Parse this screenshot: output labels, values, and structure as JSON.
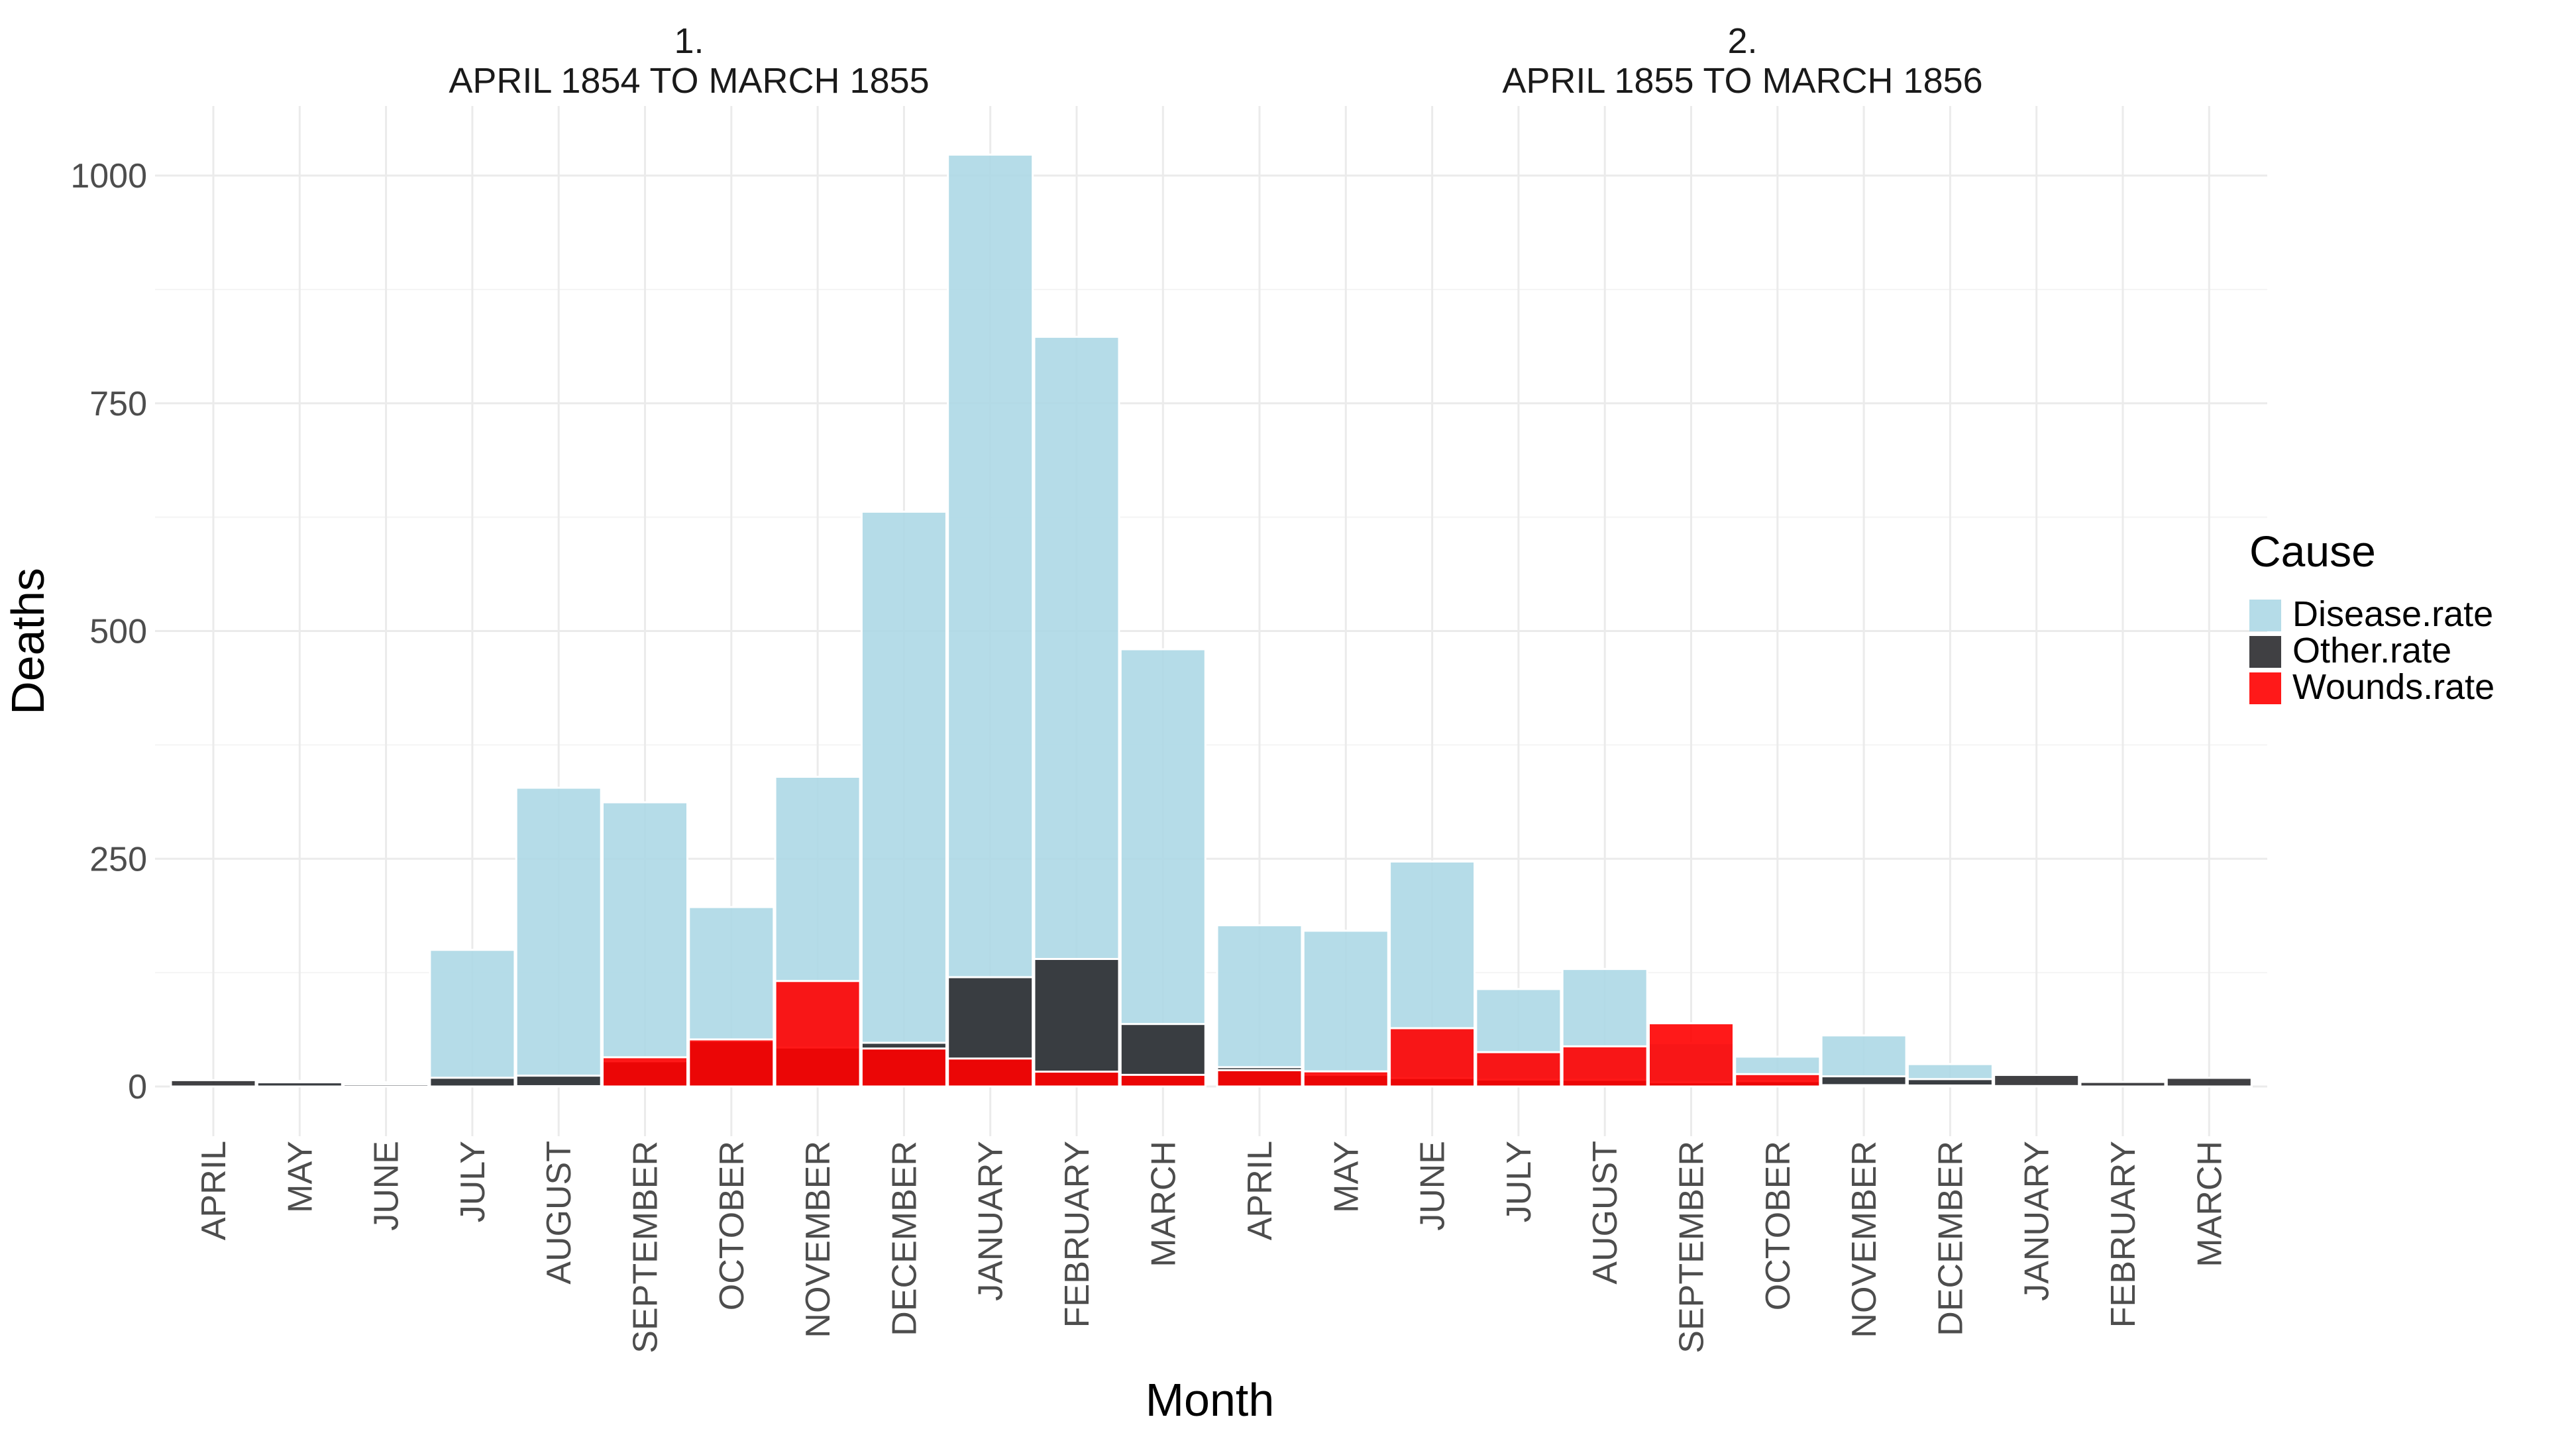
{
  "chart_data": {
    "type": "bar",
    "xlabel": "Month",
    "ylabel": "Deaths",
    "ylim": [
      0,
      1080
    ],
    "yticks": [
      0,
      250,
      500,
      750,
      1000
    ],
    "grid": true,
    "legend": {
      "title": "Cause",
      "placement": "right",
      "entries": [
        "Disease.rate",
        "Other.rate",
        "Wounds.rate"
      ]
    },
    "colors": {
      "Disease.rate": "#add8e6",
      "Other.rate": "#2b2b2f",
      "Wounds.rate": "#ff0000"
    },
    "panels": [
      {
        "label_line1": "1.",
        "label_line2": "APRIL 1854 TO MARCH 1855",
        "categories": [
          "APRIL",
          "MAY",
          "JUNE",
          "JULY",
          "AUGUST",
          "SEPTEMBER",
          "OCTOBER",
          "NOVEMBER",
          "DECEMBER",
          "JANUARY",
          "FEBRUARY",
          "MARCH"
        ],
        "series": [
          {
            "name": "Disease.rate",
            "values": [
              1.4,
              6.2,
              4.7,
              150,
              328,
              312,
              197,
              340,
              631,
              1023,
              823,
              480
            ]
          },
          {
            "name": "Other.rate",
            "values": [
              7.0,
              4.6,
              2.5,
              9.6,
              11.9,
              27.7,
              50.1,
              42.8,
              48.0,
              120,
              140,
              68.6
            ]
          },
          {
            "name": "Wounds.rate",
            "values": [
              0.0,
              0.0,
              0.0,
              0.0,
              0.4,
              32.1,
              51.7,
              115.8,
              41.7,
              30.7,
              16.3,
              12.8
            ]
          }
        ]
      },
      {
        "label_line1": "2.",
        "label_line2": "APRIL 1855 TO MARCH 1856",
        "categories": [
          "APRIL",
          "MAY",
          "JUNE",
          "JULY",
          "AUGUST",
          "SEPTEMBER",
          "OCTOBER",
          "NOVEMBER",
          "DECEMBER",
          "JANUARY",
          "FEBRUARY",
          "MARCH"
        ],
        "series": [
          {
            "name": "Disease.rate",
            "values": [
              177,
              171,
              247,
              107,
              129,
              47.5,
              32.8,
              56.1,
              24.6,
              2.5,
              1.4,
              1.4
            ]
          },
          {
            "name": "Other.rate",
            "values": [
              21.2,
              12.8,
              9.3,
              7.6,
              7.3,
              4.6,
              5.8,
              11.2,
              8.1,
              12.7,
              5.0,
              9.5
            ]
          },
          {
            "name": "Wounds.rate",
            "values": [
              17.9,
              16.6,
              64.0,
              37.7,
              44.1,
              69.4,
              13.6,
              1.5,
              1.1,
              0.5,
              0.0,
              0.0
            ]
          }
        ]
      }
    ]
  }
}
